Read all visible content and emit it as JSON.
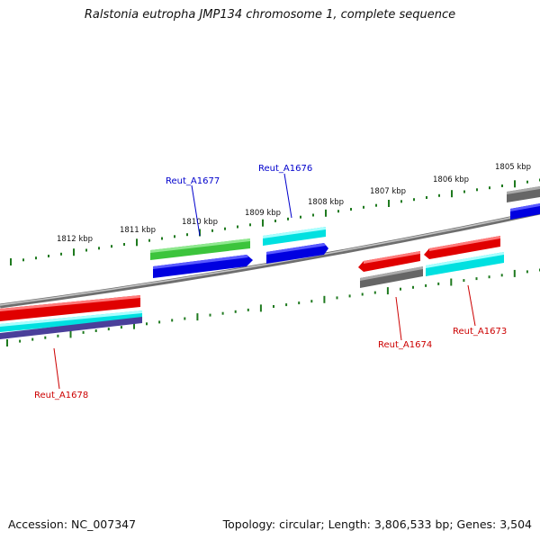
{
  "title": "Ralstonia eutropha JMP134 chromosome 1, complete sequence",
  "footer": {
    "accession": "Accession: NC_007347",
    "summary": "Topology: circular; Length: 3,806,533 bp; Genes: 3,504"
  },
  "kbp_labels": [
    "1812 kbp",
    "1811 kbp",
    "1810 kbp",
    "1809 kbp",
    "1808 kbp",
    "1807 kbp",
    "1806 kbp",
    "1805 kbp"
  ],
  "gene_labels": [
    {
      "text": "Reut_A1677",
      "color": "#0000cc"
    },
    {
      "text": "Reut_A1676",
      "color": "#0000cc"
    },
    {
      "text": "Reut_A1674",
      "color": "#cc0000"
    },
    {
      "text": "Reut_A1673",
      "color": "#cc0000"
    },
    {
      "text": "Reut_A1678",
      "color": "#cc0000"
    }
  ],
  "colors": {
    "backbone": "#7a7a7a",
    "tick": "#1f7a1f",
    "red": "#e00000",
    "cyan": "#00e0e0",
    "blue": "#0000e0",
    "green": "#3cc43c",
    "gray": "#666666",
    "purple": "#4a3f9a"
  }
}
